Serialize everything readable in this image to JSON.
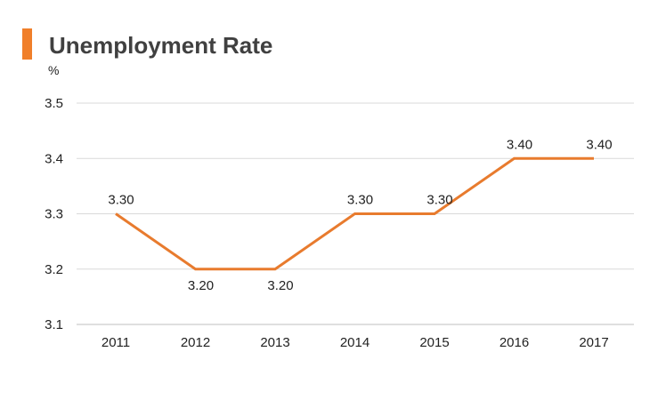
{
  "chart_data": {
    "type": "line",
    "title": "Unemployment Rate",
    "ylabel": "%",
    "xlabel": "",
    "categories": [
      "2011",
      "2012",
      "2013",
      "2014",
      "2015",
      "2016",
      "2017"
    ],
    "series": [
      {
        "values": [
          3.3,
          3.2,
          3.2,
          3.3,
          3.3,
          3.4,
          3.4
        ],
        "labels": [
          "3.30",
          "3.20",
          "3.20",
          "3.30",
          "3.30",
          "3.40",
          "3.40"
        ],
        "color": "#e87b2e"
      }
    ],
    "ylim": [
      3.1,
      3.5
    ],
    "yticks": [
      3.1,
      3.2,
      3.3,
      3.4,
      3.5
    ],
    "ytick_labels": [
      "3.1",
      "3.2",
      "3.3",
      "3.4",
      "3.5"
    ],
    "grid": true,
    "legend": "none",
    "accent_color": "#f07f2a"
  }
}
